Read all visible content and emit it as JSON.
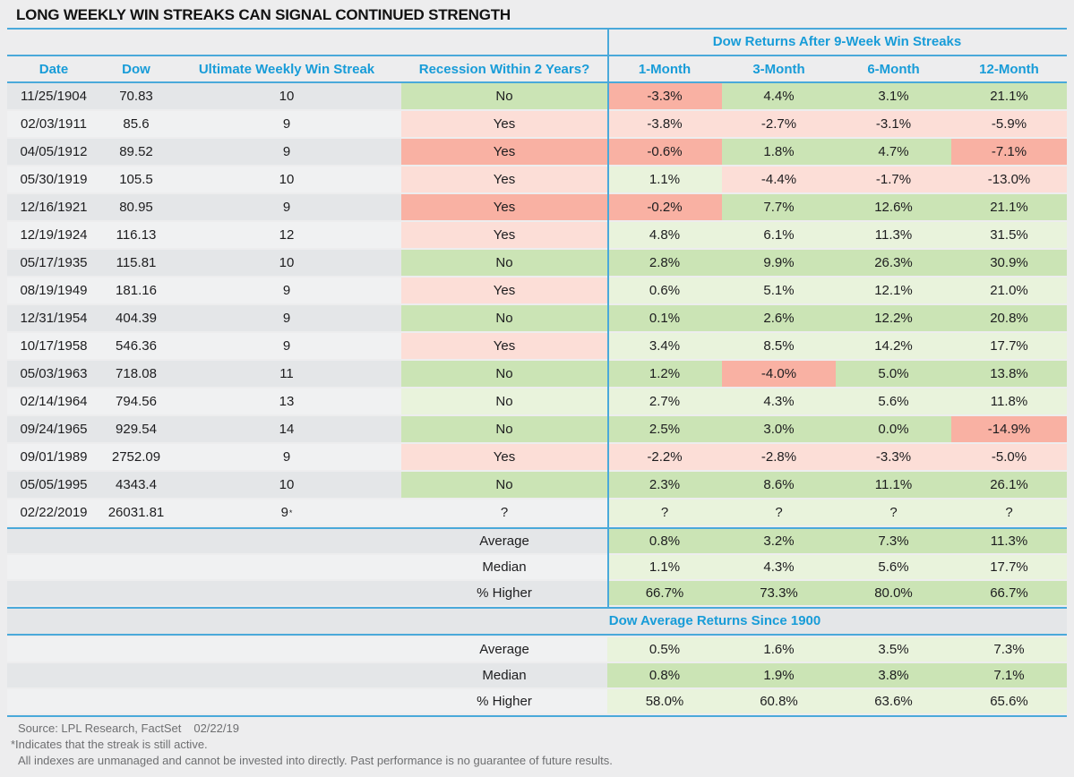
{
  "title": "LONG WEEKLY WIN STREAKS CAN SIGNAL CONTINUED STRENGTH",
  "colors": {
    "page_bg": "#ededee",
    "stripe_dark": "#e4e6e8",
    "stripe_light": "#f0f1f2",
    "green_dark": "#cbe4b5",
    "green_light": "#e9f3dc",
    "red_dark": "#f9b1a3",
    "red_light": "#fcded7",
    "blue": "#189cd8",
    "line_blue": "#4aa9da",
    "text": "#1d1d1f",
    "footer_text": "#6e6f71"
  },
  "chart_data": {
    "type": "table",
    "group_header": "Dow Returns After 9-Week Win Streaks",
    "columns": [
      "Date",
      "Dow",
      "Ultimate Weekly Win Streak",
      "Recession Within 2 Years?",
      "1-Month",
      "3-Month",
      "6-Month",
      "12-Month"
    ],
    "rows": [
      {
        "date": "11/25/1904",
        "dow": "70.83",
        "streak": "10",
        "recession": "No",
        "returns": [
          "-3.3%",
          "4.4%",
          "3.1%",
          "21.1%"
        ]
      },
      {
        "date": "02/03/1911",
        "dow": "85.6",
        "streak": "9",
        "recession": "Yes",
        "returns": [
          "-3.8%",
          "-2.7%",
          "-3.1%",
          "-5.9%"
        ]
      },
      {
        "date": "04/05/1912",
        "dow": "89.52",
        "streak": "9",
        "recession": "Yes",
        "returns": [
          "-0.6%",
          "1.8%",
          "4.7%",
          "-7.1%"
        ]
      },
      {
        "date": "05/30/1919",
        "dow": "105.5",
        "streak": "10",
        "recession": "Yes",
        "returns": [
          "1.1%",
          "-4.4%",
          "-1.7%",
          "-13.0%"
        ]
      },
      {
        "date": "12/16/1921",
        "dow": "80.95",
        "streak": "9",
        "recession": "Yes",
        "returns": [
          "-0.2%",
          "7.7%",
          "12.6%",
          "21.1%"
        ]
      },
      {
        "date": "12/19/1924",
        "dow": "116.13",
        "streak": "12",
        "recession": "Yes",
        "returns": [
          "4.8%",
          "6.1%",
          "11.3%",
          "31.5%"
        ]
      },
      {
        "date": "05/17/1935",
        "dow": "115.81",
        "streak": "10",
        "recession": "No",
        "returns": [
          "2.8%",
          "9.9%",
          "26.3%",
          "30.9%"
        ]
      },
      {
        "date": "08/19/1949",
        "dow": "181.16",
        "streak": "9",
        "recession": "Yes",
        "returns": [
          "0.6%",
          "5.1%",
          "12.1%",
          "21.0%"
        ]
      },
      {
        "date": "12/31/1954",
        "dow": "404.39",
        "streak": "9",
        "recession": "No",
        "returns": [
          "0.1%",
          "2.6%",
          "12.2%",
          "20.8%"
        ]
      },
      {
        "date": "10/17/1958",
        "dow": "546.36",
        "streak": "9",
        "recession": "Yes",
        "returns": [
          "3.4%",
          "8.5%",
          "14.2%",
          "17.7%"
        ]
      },
      {
        "date": "05/03/1963",
        "dow": "718.08",
        "streak": "11",
        "recession": "No",
        "returns": [
          "1.2%",
          "-4.0%",
          "5.0%",
          "13.8%"
        ]
      },
      {
        "date": "02/14/1964",
        "dow": "794.56",
        "streak": "13",
        "recession": "No",
        "returns": [
          "2.7%",
          "4.3%",
          "5.6%",
          "11.8%"
        ]
      },
      {
        "date": "09/24/1965",
        "dow": "929.54",
        "streak": "14",
        "recession": "No",
        "returns": [
          "2.5%",
          "3.0%",
          "0.0%",
          "-14.9%"
        ]
      },
      {
        "date": "09/01/1989",
        "dow": "2752.09",
        "streak": "9",
        "recession": "Yes",
        "returns": [
          "-2.2%",
          "-2.8%",
          "-3.3%",
          "-5.0%"
        ]
      },
      {
        "date": "05/05/1995",
        "dow": "4343.4",
        "streak": "10",
        "recession": "No",
        "returns": [
          "2.3%",
          "8.6%",
          "11.1%",
          "26.1%"
        ]
      },
      {
        "date": "02/22/2019",
        "dow": "26031.81",
        "streak": "9*",
        "recession": "?",
        "returns": [
          "?",
          "?",
          "?",
          "?"
        ]
      }
    ],
    "summary_rows": [
      {
        "label": "Average",
        "values": [
          "0.8%",
          "3.2%",
          "7.3%",
          "11.3%"
        ]
      },
      {
        "label": "Median",
        "values": [
          "1.1%",
          "4.3%",
          "5.6%",
          "17.7%"
        ]
      },
      {
        "label": "% Higher",
        "values": [
          "66.7%",
          "73.3%",
          "80.0%",
          "66.7%"
        ]
      }
    ],
    "since1900_header": "Dow Average Returns Since 1900",
    "since1900_rows": [
      {
        "label": "Average",
        "values": [
          "0.5%",
          "1.6%",
          "3.5%",
          "7.3%"
        ]
      },
      {
        "label": "Median",
        "values": [
          "0.8%",
          "1.9%",
          "3.8%",
          "7.1%"
        ]
      },
      {
        "label": "% Higher",
        "values": [
          "58.0%",
          "60.8%",
          "63.6%",
          "65.6%"
        ]
      }
    ]
  },
  "footer": {
    "source": "Source: LPL Research, FactSet",
    "source_date": "02/22/19",
    "note1": "*Indicates that the streak is still active.",
    "note2": "All indexes are unmanaged and cannot be invested into directly. Past performance is no guarantee of future results."
  }
}
